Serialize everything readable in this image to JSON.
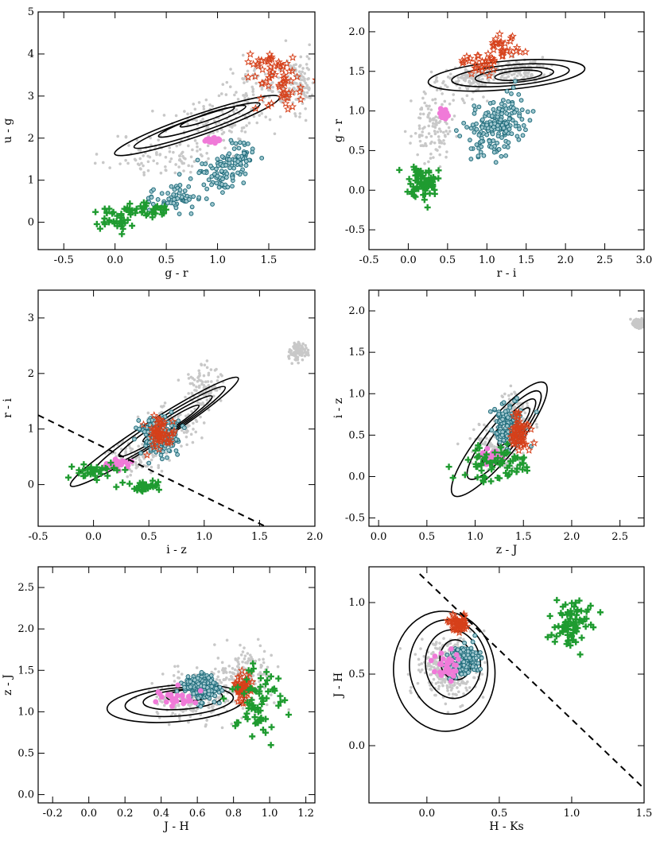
{
  "colors": {
    "grey": "#c8c8c8",
    "star": "#d6401a",
    "circle": "#1f6b7a",
    "plus": "#1f9b30",
    "pink": "#f07ad8",
    "contour": "#000000"
  },
  "chart_data": [
    {
      "type": "scatter",
      "panel": "top-left",
      "xlabel": "g - r",
      "ylabel": "u - g",
      "xlim": [
        -0.75,
        1.95
      ],
      "ylim": [
        -0.65,
        5.0
      ],
      "xticks": [
        "-0.5",
        "0.0",
        "0.5",
        "1.0",
        "1.5"
      ],
      "xtickvals": [
        -0.5,
        0,
        0.5,
        1.0,
        1.5
      ],
      "yticks": [
        "0",
        "1",
        "2",
        "3",
        "4",
        "5"
      ],
      "ytickvals": [
        0,
        1,
        2,
        3,
        4,
        5
      ],
      "seed": 11,
      "grey": {
        "n": 420,
        "pts": [
          [
            0.5,
            1.6,
            0.55,
            0.55
          ],
          [
            1.0,
            2.4,
            0.45,
            0.55
          ],
          [
            1.4,
            3.2,
            0.35,
            0.6
          ],
          [
            1.8,
            3.3,
            0.15,
            0.7
          ]
        ]
      },
      "circle": {
        "n": 180,
        "pts": [
          [
            1.0,
            1.2,
            0.2,
            0.45
          ],
          [
            0.6,
            0.6,
            0.25,
            0.35
          ],
          [
            1.2,
            1.5,
            0.15,
            0.4
          ]
        ]
      },
      "plus": {
        "n": 70,
        "pts": [
          [
            0.0,
            0.1,
            0.2,
            0.25
          ],
          [
            0.3,
            0.3,
            0.2,
            0.2
          ]
        ]
      },
      "star": {
        "n": 70,
        "pts": [
          [
            1.6,
            3.2,
            0.25,
            0.6
          ],
          [
            1.5,
            3.7,
            0.2,
            0.4
          ]
        ]
      },
      "pink": {
        "n": 30,
        "pts": [
          [
            0.95,
            1.95,
            0.07,
            0.06
          ]
        ]
      },
      "contours": [
        {
          "c": [
            0.8,
            2.3
          ],
          "r": [
            0.85,
            0.25
          ],
          "a": 40
        },
        {
          "c": [
            0.8,
            2.3
          ],
          "r": [
            0.65,
            0.18
          ],
          "a": 40
        },
        {
          "c": [
            0.85,
            2.4
          ],
          "r": [
            0.45,
            0.13
          ],
          "a": 40
        },
        {
          "c": [
            0.9,
            2.5
          ],
          "r": [
            0.28,
            0.08
          ],
          "a": 40
        }
      ],
      "dashed": null
    },
    {
      "type": "scatter",
      "panel": "top-right",
      "xlabel": "r - i",
      "ylabel": "g - r",
      "xlim": [
        -0.5,
        3.0
      ],
      "ylim": [
        -0.75,
        2.25
      ],
      "xticks": [
        "-0.5",
        "0.0",
        "0.5",
        "1.0",
        "1.5",
        "2.0",
        "2.5",
        "3.0"
      ],
      "xtickvals": [
        -0.5,
        0,
        0.5,
        1.0,
        1.5,
        2.0,
        2.5,
        3.0
      ],
      "yticks": [
        "-0.5",
        "0.0",
        "0.5",
        "1.0",
        "1.5",
        "2.0"
      ],
      "ytickvals": [
        -0.5,
        0,
        0.5,
        1.0,
        1.5,
        2.0
      ],
      "seed": 23,
      "grey": {
        "n": 380,
        "pts": [
          [
            0.3,
            0.8,
            0.25,
            0.45
          ],
          [
            0.8,
            1.4,
            0.35,
            0.2
          ],
          [
            1.4,
            1.5,
            0.35,
            0.15
          ]
        ]
      },
      "circle": {
        "n": 180,
        "pts": [
          [
            1.0,
            0.7,
            0.35,
            0.35
          ],
          [
            1.2,
            0.9,
            0.3,
            0.3
          ]
        ]
      },
      "plus": {
        "n": 70,
        "pts": [
          [
            0.2,
            0.1,
            0.2,
            0.2
          ]
        ]
      },
      "star": {
        "n": 60,
        "pts": [
          [
            0.9,
            1.6,
            0.25,
            0.15
          ],
          [
            1.2,
            1.8,
            0.2,
            0.15
          ]
        ]
      },
      "pink": {
        "n": 30,
        "pts": [
          [
            0.45,
            0.95,
            0.07,
            0.06
          ]
        ]
      },
      "contours": [
        {
          "c": [
            1.25,
            1.45
          ],
          "r": [
            1.0,
            0.18
          ],
          "a": 5
        },
        {
          "c": [
            1.3,
            1.45
          ],
          "r": [
            0.75,
            0.13
          ],
          "a": 5
        },
        {
          "c": [
            1.35,
            1.45
          ],
          "r": [
            0.5,
            0.09
          ],
          "a": 5
        },
        {
          "c": [
            1.4,
            1.45
          ],
          "r": [
            0.3,
            0.06
          ],
          "a": 5
        }
      ],
      "dashed": null
    },
    {
      "type": "scatter",
      "panel": "middle-left",
      "xlabel": "i - z",
      "ylabel": "r - i",
      "xlim": [
        -0.5,
        2.0
      ],
      "ylim": [
        -0.75,
        3.5
      ],
      "xticks": [
        "-0.5",
        "0.0",
        "0.5",
        "1.0",
        "1.5",
        "2.0"
      ],
      "xtickvals": [
        -0.5,
        0,
        0.5,
        1.0,
        1.5,
        2.0
      ],
      "yticks": [
        "0",
        "1",
        "2",
        "3"
      ],
      "ytickvals": [
        0,
        1,
        2,
        3
      ],
      "seed": 37,
      "grey": {
        "n": 380,
        "pts": [
          [
            0.4,
            0.5,
            0.25,
            0.3
          ],
          [
            0.7,
            1.1,
            0.25,
            0.4
          ],
          [
            1.0,
            1.8,
            0.15,
            0.4
          ],
          [
            1.85,
            2.4,
            0.08,
            0.15
          ]
        ]
      },
      "circle": {
        "n": 180,
        "pts": [
          [
            0.6,
            0.9,
            0.18,
            0.35
          ]
        ]
      },
      "plus": {
        "n": 70,
        "pts": [
          [
            0.05,
            0.25,
            0.25,
            0.15
          ],
          [
            0.45,
            -0.05,
            0.15,
            0.1
          ]
        ]
      },
      "star": {
        "n": 60,
        "pts": [
          [
            0.6,
            0.9,
            0.12,
            0.3
          ]
        ]
      },
      "pink": {
        "n": 30,
        "pts": [
          [
            0.2,
            0.35,
            0.12,
            0.1
          ]
        ]
      },
      "contours": [
        {
          "c": [
            0.55,
            0.95
          ],
          "r": [
            0.9,
            0.2
          ],
          "a": 52
        },
        {
          "c": [
            0.6,
            1.0
          ],
          "r": [
            0.7,
            0.16
          ],
          "a": 52
        },
        {
          "c": [
            0.65,
            1.05
          ],
          "r": [
            0.5,
            0.12
          ],
          "a": 52
        },
        {
          "c": [
            0.7,
            1.1
          ],
          "r": [
            0.3,
            0.08
          ],
          "a": 52
        }
      ],
      "dashed": [
        [
          -0.5,
          1.25
        ],
        [
          1.55,
          -0.75
        ]
      ]
    },
    {
      "type": "scatter",
      "panel": "middle-right",
      "xlabel": "z - J",
      "ylabel": "i - z",
      "xlim": [
        -0.1,
        2.75
      ],
      "ylim": [
        -0.6,
        2.25
      ],
      "xticks": [
        "0.0",
        "0.5",
        "1.0",
        "1.5",
        "2.0",
        "2.5"
      ],
      "xtickvals": [
        0,
        0.5,
        1.0,
        1.5,
        2.0,
        2.5
      ],
      "yticks": [
        "-0.5",
        "0.0",
        "0.5",
        "1.0",
        "1.5",
        "2.0"
      ],
      "ytickvals": [
        -0.5,
        0,
        0.5,
        1.0,
        1.5,
        2.0
      ],
      "seed": 51,
      "grey": {
        "n": 380,
        "pts": [
          [
            1.2,
            0.35,
            0.3,
            0.3
          ],
          [
            1.4,
            0.7,
            0.2,
            0.3
          ],
          [
            2.7,
            1.85,
            0.06,
            0.05
          ]
        ]
      },
      "circle": {
        "n": 180,
        "pts": [
          [
            1.35,
            0.6,
            0.15,
            0.25
          ]
        ]
      },
      "plus": {
        "n": 70,
        "pts": [
          [
            1.2,
            0.15,
            0.4,
            0.25
          ]
        ]
      },
      "star": {
        "n": 60,
        "pts": [
          [
            1.45,
            0.55,
            0.12,
            0.2
          ]
        ]
      },
      "pink": {
        "n": 30,
        "pts": [
          [
            1.2,
            0.25,
            0.12,
            0.1
          ]
        ]
      },
      "contours": [
        {
          "c": [
            1.25,
            0.45
          ],
          "r": [
            0.75,
            0.22
          ],
          "a": 55
        },
        {
          "c": [
            1.3,
            0.5
          ],
          "r": [
            0.58,
            0.17
          ],
          "a": 55
        },
        {
          "c": [
            1.35,
            0.55
          ],
          "r": [
            0.42,
            0.12
          ],
          "a": 55
        },
        {
          "c": [
            1.4,
            0.6
          ],
          "r": [
            0.25,
            0.07
          ],
          "a": 55
        }
      ],
      "dashed": null
    },
    {
      "type": "scatter",
      "panel": "bottom-left",
      "xlabel": "J - H",
      "ylabel": "z - J",
      "xlim": [
        -0.28,
        1.25
      ],
      "ylim": [
        -0.1,
        2.75
      ],
      "xticks": [
        "-0.2",
        "0.0",
        "0.2",
        "0.4",
        "0.6",
        "0.8",
        "1.0",
        "1.2"
      ],
      "xtickvals": [
        -0.2,
        0,
        0.2,
        0.4,
        0.6,
        0.8,
        1.0,
        1.2
      ],
      "yticks": [
        "0.0",
        "0.5",
        "1.0",
        "1.5",
        "2.0",
        "2.5"
      ],
      "ytickvals": [
        0,
        0.5,
        1.0,
        1.5,
        2.0,
        2.5
      ],
      "seed": 67,
      "grey": {
        "n": 380,
        "pts": [
          [
            0.55,
            1.15,
            0.2,
            0.3
          ],
          [
            0.85,
            1.4,
            0.15,
            0.35
          ]
        ]
      },
      "circle": {
        "n": 180,
        "pts": [
          [
            0.62,
            1.3,
            0.1,
            0.15
          ]
        ]
      },
      "plus": {
        "n": 70,
        "pts": [
          [
            0.95,
            1.1,
            0.15,
            0.45
          ]
        ]
      },
      "star": {
        "n": 60,
        "pts": [
          [
            0.85,
            1.3,
            0.05,
            0.15
          ]
        ]
      },
      "pink": {
        "n": 30,
        "pts": [
          [
            0.48,
            1.15,
            0.12,
            0.12
          ]
        ]
      },
      "contours": [
        {
          "c": [
            0.48,
            1.1
          ],
          "r": [
            0.38,
            0.22
          ],
          "a": 10
        },
        {
          "c": [
            0.5,
            1.12
          ],
          "r": [
            0.3,
            0.17
          ],
          "a": 10
        },
        {
          "c": [
            0.52,
            1.15
          ],
          "r": [
            0.22,
            0.12
          ],
          "a": 10
        },
        {
          "c": [
            0.56,
            1.2
          ],
          "r": [
            0.13,
            0.07
          ],
          "a": 10
        }
      ],
      "dashed": null
    },
    {
      "type": "scatter",
      "panel": "bottom-right",
      "xlabel": "H - Ks",
      "ylabel": "J - H",
      "xlim": [
        -0.4,
        1.5
      ],
      "ylim": [
        -0.4,
        1.25
      ],
      "xticks": [
        "0.0",
        "0.5",
        "1.0",
        "1.5"
      ],
      "xtickvals": [
        0,
        0.5,
        1.0,
        1.5
      ],
      "yticks": [
        "0.0",
        "0.5",
        "1.0"
      ],
      "ytickvals": [
        0,
        0.5,
        1.0
      ],
      "seed": 83,
      "grey": {
        "n": 380,
        "pts": [
          [
            0.15,
            0.55,
            0.2,
            0.2
          ]
        ]
      },
      "circle": {
        "n": 180,
        "pts": [
          [
            0.25,
            0.6,
            0.12,
            0.1
          ]
        ]
      },
      "plus": {
        "n": 80,
        "pts": [
          [
            1.0,
            0.85,
            0.15,
            0.15
          ]
        ]
      },
      "star": {
        "n": 60,
        "pts": [
          [
            0.22,
            0.85,
            0.06,
            0.05
          ]
        ]
      },
      "pink": {
        "n": 30,
        "pts": [
          [
            0.15,
            0.55,
            0.12,
            0.1
          ]
        ]
      },
      "contours": [
        {
          "c": [
            0.12,
            0.52
          ],
          "r": [
            0.35,
            0.42
          ],
          "a": 5
        },
        {
          "c": [
            0.15,
            0.55
          ],
          "r": [
            0.27,
            0.33
          ],
          "a": 5
        },
        {
          "c": [
            0.18,
            0.57
          ],
          "r": [
            0.19,
            0.24
          ],
          "a": 5
        },
        {
          "c": [
            0.2,
            0.6
          ],
          "r": [
            0.11,
            0.14
          ],
          "a": 5
        }
      ],
      "dashed": [
        [
          -0.05,
          1.2
        ],
        [
          1.5,
          -0.3
        ]
      ]
    }
  ]
}
